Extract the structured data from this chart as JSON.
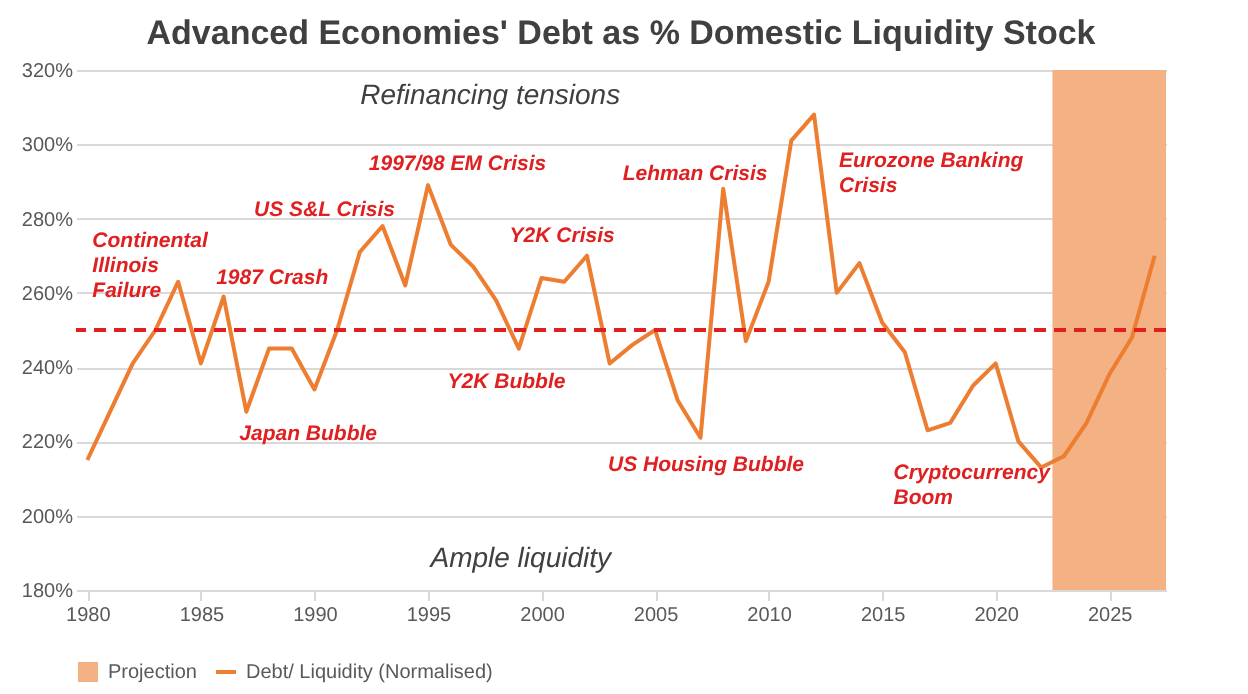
{
  "chart_data": {
    "type": "line",
    "title": "Advanced Economies' Debt as % Domestic Liquidity Stock",
    "x": [
      1980,
      1981,
      1982,
      1983,
      1984,
      1985,
      1986,
      1987,
      1988,
      1989,
      1990,
      1991,
      1992,
      1993,
      1994,
      1995,
      1996,
      1997,
      1998,
      1999,
      2000,
      2001,
      2002,
      2003,
      2004,
      2005,
      2006,
      2007,
      2008,
      2009,
      2010,
      2011,
      2012,
      2013,
      2014,
      2015,
      2016,
      2017,
      2018,
      2019,
      2020,
      2021,
      2022,
      2023,
      2024,
      2025,
      2026,
      2027
    ],
    "series": [
      {
        "name": "Debt/ Liquidity (Normalised)",
        "color": "#ed7d31",
        "values": [
          215,
          228,
          241,
          250,
          263,
          241,
          259,
          228,
          245,
          245,
          234,
          250,
          271,
          278,
          262,
          289,
          273,
          267,
          258,
          245,
          264,
          263,
          270,
          241,
          246,
          250,
          231,
          221,
          288,
          247,
          263,
          301,
          308,
          260,
          268,
          252,
          244,
          223,
          225,
          235,
          241,
          220,
          213,
          216,
          225,
          238,
          248,
          270
        ]
      }
    ],
    "xlim": [
      1979.5,
      2027.5
    ],
    "xticks": [
      1980,
      1985,
      1990,
      1995,
      2000,
      2005,
      2010,
      2015,
      2020,
      2025
    ],
    "ylim": [
      180,
      320
    ],
    "yticks": [
      {
        "value": 180,
        "label": "180%"
      },
      {
        "value": 200,
        "label": "200%"
      },
      {
        "value": 220,
        "label": "220%"
      },
      {
        "value": 240,
        "label": "240%"
      },
      {
        "value": 260,
        "label": "260%"
      },
      {
        "value": 280,
        "label": "280%"
      },
      {
        "value": 300,
        "label": "300%"
      },
      {
        "value": 320,
        "label": "320%"
      }
    ],
    "ref_lines": [
      {
        "axis": "y",
        "value": 250,
        "color": "#e02020",
        "line_style": "dashed"
      }
    ],
    "bands": [
      {
        "axis": "x",
        "from": 2022.5,
        "to": 2027.5,
        "label": "Projection",
        "color": "#f4b183"
      }
    ],
    "annotations": [
      "Continental\nIllinois\nFailure",
      "1987 Crash",
      "US S&L Crisis",
      "1997/98 EM Crisis",
      "Japan Bubble",
      "Y2K Crisis",
      "Y2K Bubble",
      "Lehman Crisis",
      "US Housing Bubble",
      "Eurozone Banking\nCrisis",
      "Cryptocurrency\nBoom",
      "Refinancing tensions",
      "Ample liquidity"
    ],
    "grid": "y",
    "legend": "bottom",
    "marker": "none",
    "line_style": "solid"
  }
}
